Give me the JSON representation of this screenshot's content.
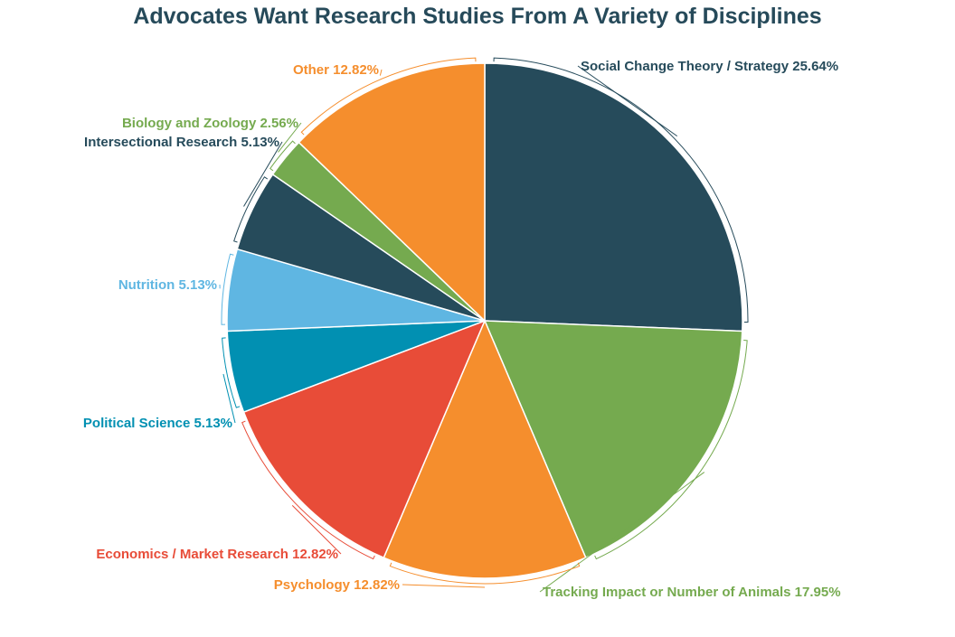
{
  "chart_data": {
    "type": "pie",
    "title": "Advocates Want Research Studies From A Variety of Disciplines",
    "slices": [
      {
        "label": "Social Change Theory / Strategy",
        "value": 25.64,
        "value_text": "25.64%",
        "color": "#264b5b"
      },
      {
        "label": "Tracking Impact or Number of Animals",
        "value": 17.95,
        "value_text": "17.95%",
        "color": "#75aa4f"
      },
      {
        "label": "Psychology",
        "value": 12.82,
        "value_text": "12.82%",
        "color": "#f58e2d"
      },
      {
        "label": "Economics / Market Research",
        "value": 12.82,
        "value_text": "12.82%",
        "color": "#e84c38"
      },
      {
        "label": "Political Science",
        "value": 5.13,
        "value_text": "5.13%",
        "color": "#0190b2"
      },
      {
        "label": "Nutrition",
        "value": 5.13,
        "value_text": "5.13%",
        "color": "#5fb6e2"
      },
      {
        "label": "Intersectional Research",
        "value": 5.13,
        "value_text": "5.13%",
        "color": "#264b5b"
      },
      {
        "label": "Biology and Zoology",
        "value": 2.56,
        "value_text": "2.56%",
        "color": "#75aa4f"
      },
      {
        "label": "Other",
        "value": 12.82,
        "value_text": "12.82%",
        "color": "#f58e2d"
      }
    ],
    "start_angle": "12 o'clock",
    "direction": "clockwise",
    "legend": "none",
    "labels": "outside with bracket leaders"
  },
  "colors": {
    "title": "#264a5a"
  }
}
